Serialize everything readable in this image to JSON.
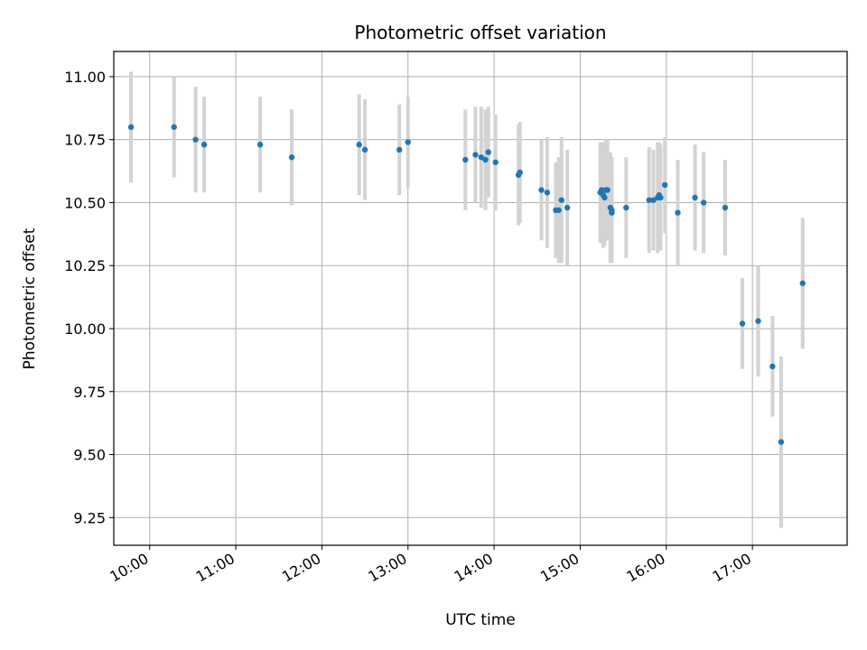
{
  "chart_data": {
    "type": "scatter",
    "title": "Photometric offset variation",
    "xlabel": "UTC time",
    "ylabel": "Photometric offset",
    "x_ticks": [
      "10:00",
      "11:00",
      "12:00",
      "13:00",
      "14:00",
      "15:00",
      "16:00",
      "17:00"
    ],
    "y_ticks": [
      "9.25",
      "9.50",
      "9.75",
      "10.00",
      "10.25",
      "10.50",
      "10.75",
      "11.00"
    ],
    "xlim": [
      "09:35",
      "18:06"
    ],
    "ylim": [
      9.14,
      11.1
    ],
    "grid": true,
    "legend": "none",
    "colors": {
      "point": "#1f77b4",
      "errorbar": "#d3d3d3",
      "grid": "#b0b0b0",
      "axis": "#000000"
    },
    "series": [
      {
        "x": [
          "09:47",
          "10:17",
          "10:32",
          "10:38",
          "11:17",
          "11:39",
          "12:26",
          "12:30",
          "12:54",
          "13:00",
          "13:40",
          "13:47",
          "13:51",
          "13:54",
          "13:56",
          "14:01",
          "14:17",
          "14:18",
          "14:33",
          "14:37",
          "14:43",
          "14:45",
          "14:47",
          "14:51",
          "15:14",
          "15:15",
          "15:16",
          "15:17",
          "15:18",
          "15:19",
          "15:21",
          "15:22",
          "15:22",
          "15:32",
          "15:48",
          "15:51",
          "15:54",
          "15:55",
          "15:56",
          "15:59",
          "16:08",
          "16:20",
          "16:26",
          "16:41",
          "16:53",
          "17:04",
          "17:14",
          "17:20",
          "17:35"
        ],
        "y": [
          10.8,
          10.8,
          10.75,
          10.73,
          10.73,
          10.68,
          10.73,
          10.71,
          10.71,
          10.74,
          10.67,
          10.69,
          10.68,
          10.67,
          10.7,
          10.66,
          10.61,
          10.62,
          10.55,
          10.54,
          10.47,
          10.47,
          10.51,
          10.48,
          10.54,
          10.55,
          10.53,
          10.52,
          10.55,
          10.55,
          10.48,
          10.46,
          10.47,
          10.48,
          10.51,
          10.51,
          10.52,
          10.53,
          10.52,
          10.57,
          10.46,
          10.52,
          10.5,
          10.48,
          10.02,
          10.03,
          9.85,
          9.55,
          10.18
        ],
        "err": [
          0.22,
          0.2,
          0.21,
          0.19,
          0.19,
          0.19,
          0.2,
          0.2,
          0.18,
          0.18,
          0.2,
          0.19,
          0.2,
          0.2,
          0.18,
          0.19,
          0.2,
          0.2,
          0.2,
          0.22,
          0.19,
          0.21,
          0.25,
          0.23,
          0.2,
          0.19,
          0.21,
          0.19,
          0.2,
          0.2,
          0.22,
          0.19,
          0.21,
          0.2,
          0.21,
          0.2,
          0.22,
          0.21,
          0.21,
          0.19,
          0.21,
          0.21,
          0.2,
          0.19,
          0.18,
          0.22,
          0.2,
          0.34,
          0.26
        ]
      }
    ]
  }
}
